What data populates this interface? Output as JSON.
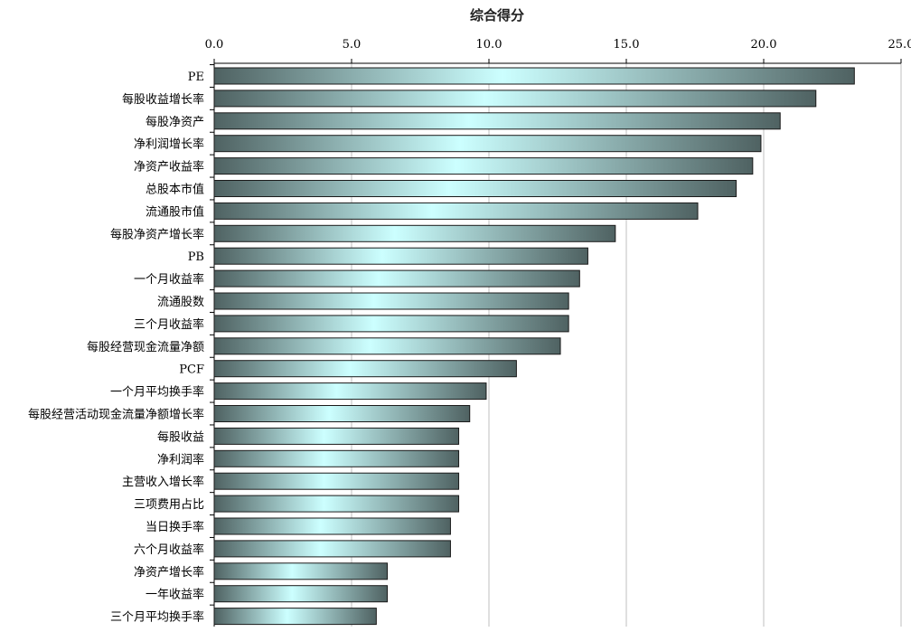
{
  "chart_data": {
    "type": "bar",
    "orientation": "horizontal",
    "title": "综合得分",
    "xlabel": "",
    "ylabel": "",
    "xlim": [
      0,
      25
    ],
    "x_ticks": [
      "0.0",
      "5.0",
      "10.0",
      "15.0",
      "20.0",
      "25.0"
    ],
    "x_tick_values": [
      0,
      5,
      10,
      15,
      20,
      25
    ],
    "x_axis_position": "top",
    "grid": true,
    "legend": "none",
    "categories": [
      "PE",
      "每股收益增长率",
      "每股净资产",
      "净利润增长率",
      "净资产收益率",
      "总股本市值",
      "流通股市值",
      "每股净资产增长率",
      "PB",
      "一个月收益率",
      "流通股数",
      "三个月收益率",
      "每股经营现金流量净额",
      "PCF",
      "一个月平均换手率",
      "每股经营活动现金流量净额增长率",
      "每股收益",
      "净利润率",
      "主营收入增长率",
      "三项费用占比",
      "当日换手率",
      "六个月收益率",
      "净资产增长率",
      "一年收益率",
      "三个月平均换手率"
    ],
    "values": [
      23.3,
      21.9,
      20.6,
      19.9,
      19.6,
      19.0,
      17.6,
      14.6,
      13.6,
      13.3,
      12.9,
      12.9,
      12.6,
      11.0,
      9.9,
      9.3,
      8.9,
      8.9,
      8.9,
      8.9,
      8.6,
      8.6,
      6.3,
      6.3,
      5.9
    ],
    "colors": {
      "bar_edge": "#5a6e6e",
      "bar_light": "#ccffff",
      "bar_dark": "#4f6262",
      "grid": "#bfbfbf",
      "axis": "#000000"
    }
  }
}
